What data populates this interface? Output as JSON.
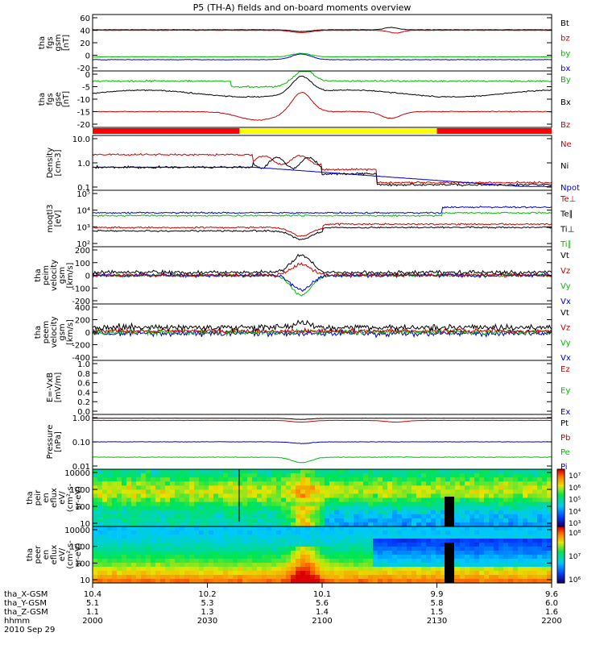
{
  "title": "P5 (TH-A) fields and on-board moments overview",
  "panels": [
    {
      "id": "fgs_btot",
      "ylabel": [
        "tha",
        "fgs",
        "gsm",
        "[nT]"
      ],
      "yticks": [
        "60",
        "40",
        "20",
        "0",
        "-20"
      ],
      "legend": [
        {
          "label": "Bt",
          "color": "#000000"
        },
        {
          "label": "bz",
          "color": "#cc0000"
        },
        {
          "label": "by",
          "color": "#00bb00"
        },
        {
          "label": "bx",
          "color": "#0000cc"
        }
      ]
    },
    {
      "id": "fgs_gse",
      "ylabel": [
        "tha",
        "fgs",
        "gse",
        "[nT]"
      ],
      "yticks": [
        "0",
        "-5",
        "-10",
        "-15",
        "-20"
      ],
      "legend": [
        {
          "label": "By",
          "color": "#00bb00"
        },
        {
          "label": "Bx",
          "color": "#000000"
        },
        {
          "label": "Bz",
          "color": "#cc0000"
        }
      ]
    },
    {
      "id": "density",
      "ylabel": [
        "Density",
        "[cm-3]"
      ],
      "yticks": [
        "10.0",
        "1.0",
        "0.1"
      ],
      "legend": [
        {
          "label": "Ne",
          "color": "#cc0000"
        },
        {
          "label": "Ni",
          "color": "#000000"
        },
        {
          "label": "Npot",
          "color": "#0000cc"
        }
      ]
    },
    {
      "id": "temperature",
      "ylabel": [
        "moqtl3",
        "[eV]"
      ],
      "yticks": [
        "10⁵",
        "10⁴",
        "10³",
        "10²"
      ],
      "legend": [
        {
          "label": "Te⊥",
          "color": "#cc0000"
        },
        {
          "label": "Te∥",
          "color": "#000000"
        },
        {
          "label": "Ti⊥",
          "color": "#000000"
        },
        {
          "label": "Ti∥",
          "color": "#00bb00"
        }
      ]
    },
    {
      "id": "peim_velocity",
      "ylabel": [
        "tha",
        "peim",
        "velocity",
        "gsm",
        "[km/s]"
      ],
      "yticks": [
        "200",
        "100",
        "0",
        "-100",
        "-200"
      ],
      "legend": [
        {
          "label": "Vt",
          "color": "#000000"
        },
        {
          "label": "Vz",
          "color": "#cc0000"
        },
        {
          "label": "Vy",
          "color": "#00bb00"
        },
        {
          "label": "Vx",
          "color": "#0000cc"
        }
      ]
    },
    {
      "id": "peem_velocity",
      "ylabel": [
        "tha",
        "peem",
        "velocity",
        "gsm",
        "[km/s]"
      ],
      "yticks": [
        "400",
        "200",
        "0",
        "-200",
        "-400"
      ],
      "legend": [
        {
          "label": "Vt",
          "color": "#000000"
        },
        {
          "label": "Vz",
          "color": "#cc0000"
        },
        {
          "label": "Vy",
          "color": "#00bb00"
        },
        {
          "label": "Vx",
          "color": "#0000cc"
        }
      ]
    },
    {
      "id": "efield",
      "ylabel": [
        "E=-VxB",
        "[mV/m]"
      ],
      "yticks": [
        "1.0",
        "0.8",
        "0.6",
        "0.4",
        "0.2",
        "0.0"
      ],
      "legend": [
        {
          "label": "Ez",
          "color": "#cc0000"
        },
        {
          "label": "Ey",
          "color": "#00bb00"
        },
        {
          "label": "Ex",
          "color": "#0000cc"
        }
      ]
    },
    {
      "id": "pressure",
      "ylabel": [
        "Pressure",
        "[nPa]"
      ],
      "yticks": [
        "1.00",
        "0.10",
        "0.01"
      ],
      "legend": [
        {
          "label": "Pt",
          "color": "#000000"
        },
        {
          "label": "Pb",
          "color": "#cc0000"
        },
        {
          "label": "Pe",
          "color": "#00bb00"
        },
        {
          "label": "Pi",
          "color": "#0000cc"
        }
      ]
    },
    {
      "id": "peir_spec",
      "ylabel": [
        "tha",
        "peir",
        "en",
        "eflux",
        "eV/",
        "(cm²-s-",
        "sr-eV)"
      ],
      "yticks": [
        "10000",
        "1000",
        "100",
        "10"
      ],
      "colorbar": [
        "10⁷",
        "10⁶",
        "10⁵",
        "10⁴",
        "10³"
      ]
    },
    {
      "id": "peer_spec",
      "ylabel": [
        "tha",
        "peer",
        "en",
        "eflux",
        "eV/",
        "(cm²-s-",
        "sr-eV)"
      ],
      "yticks": [
        "10000",
        "1000",
        "100",
        "10"
      ],
      "colorbar": [
        "10⁸",
        "10⁷",
        "10⁶"
      ]
    }
  ],
  "mode_bar": [
    {
      "from": 0.0,
      "to": 0.32,
      "color": "#ff0000"
    },
    {
      "from": 0.32,
      "to": 0.75,
      "color": "#ffff00"
    },
    {
      "from": 0.75,
      "to": 1.0,
      "color": "#ff0000"
    }
  ],
  "xaxis": {
    "row_labels": [
      "tha_X-GSM",
      "tha_Y-GSM",
      "tha_Z-GSM",
      "hhmm",
      "2010 Sep 29"
    ],
    "columns": [
      [
        "10.4",
        "5.1",
        "1.1",
        "2000"
      ],
      [
        "10.2",
        "5.3",
        "1.3",
        "2030"
      ],
      [
        "10.1",
        "5.6",
        "1.4",
        "2100"
      ],
      [
        "9.9",
        "5.8",
        "1.5",
        "2130"
      ],
      [
        "9.6",
        "6.0",
        "1.6",
        "2200"
      ]
    ]
  },
  "chart_data": {
    "type": "line",
    "title": "P5 (TH-A) fields and on-board moments overview",
    "x": [
      "2000",
      "2030",
      "2100",
      "2130",
      "2200"
    ],
    "xlabel": "hhmm",
    "date": "2010 Sep 29",
    "series": [
      {
        "name": "Bt",
        "panel": "fgs_btot",
        "values": [
          40,
          39,
          37,
          38,
          39
        ]
      },
      {
        "name": "bz",
        "panel": "fgs_btot",
        "values": [
          39,
          38,
          36,
          37,
          38
        ]
      },
      {
        "name": "by",
        "panel": "fgs_btot",
        "values": [
          -3,
          -4,
          -2,
          -3,
          -4
        ]
      },
      {
        "name": "bx",
        "panel": "fgs_btot",
        "values": [
          -4,
          -5,
          -3,
          -5,
          -5
        ]
      },
      {
        "name": "By",
        "panel": "fgs_gse",
        "values": [
          -1,
          -1,
          0,
          0,
          -1
        ]
      },
      {
        "name": "Bx",
        "panel": "fgs_gse",
        "values": [
          -5,
          -5,
          -3,
          -4,
          -6
        ]
      },
      {
        "name": "Bz",
        "panel": "fgs_gse",
        "values": [
          -13,
          -12,
          -14,
          -16,
          -12
        ]
      },
      {
        "name": "Ne",
        "panel": "density",
        "values": [
          1.3,
          1.3,
          1.2,
          0.5,
          0.4
        ]
      },
      {
        "name": "Ni",
        "panel": "density",
        "values": [
          0.7,
          0.8,
          1.0,
          0.4,
          0.3
        ]
      },
      {
        "name": "Npot",
        "panel": "density",
        "values": [
          0.8,
          0.8,
          0.5,
          0.25,
          0.2
        ]
      },
      {
        "name": "Pt",
        "panel": "pressure",
        "values": [
          0.9,
          0.9,
          0.85,
          0.88,
          0.9
        ]
      },
      {
        "name": "Pb",
        "panel": "pressure",
        "values": [
          0.85,
          0.85,
          0.8,
          0.84,
          0.86
        ]
      },
      {
        "name": "Pe",
        "panel": "pressure",
        "values": [
          0.1,
          0.1,
          0.09,
          0.1,
          0.1
        ]
      },
      {
        "name": "Pi",
        "panel": "pressure",
        "values": [
          0.03,
          0.03,
          0.025,
          0.03,
          0.03
        ]
      }
    ]
  }
}
